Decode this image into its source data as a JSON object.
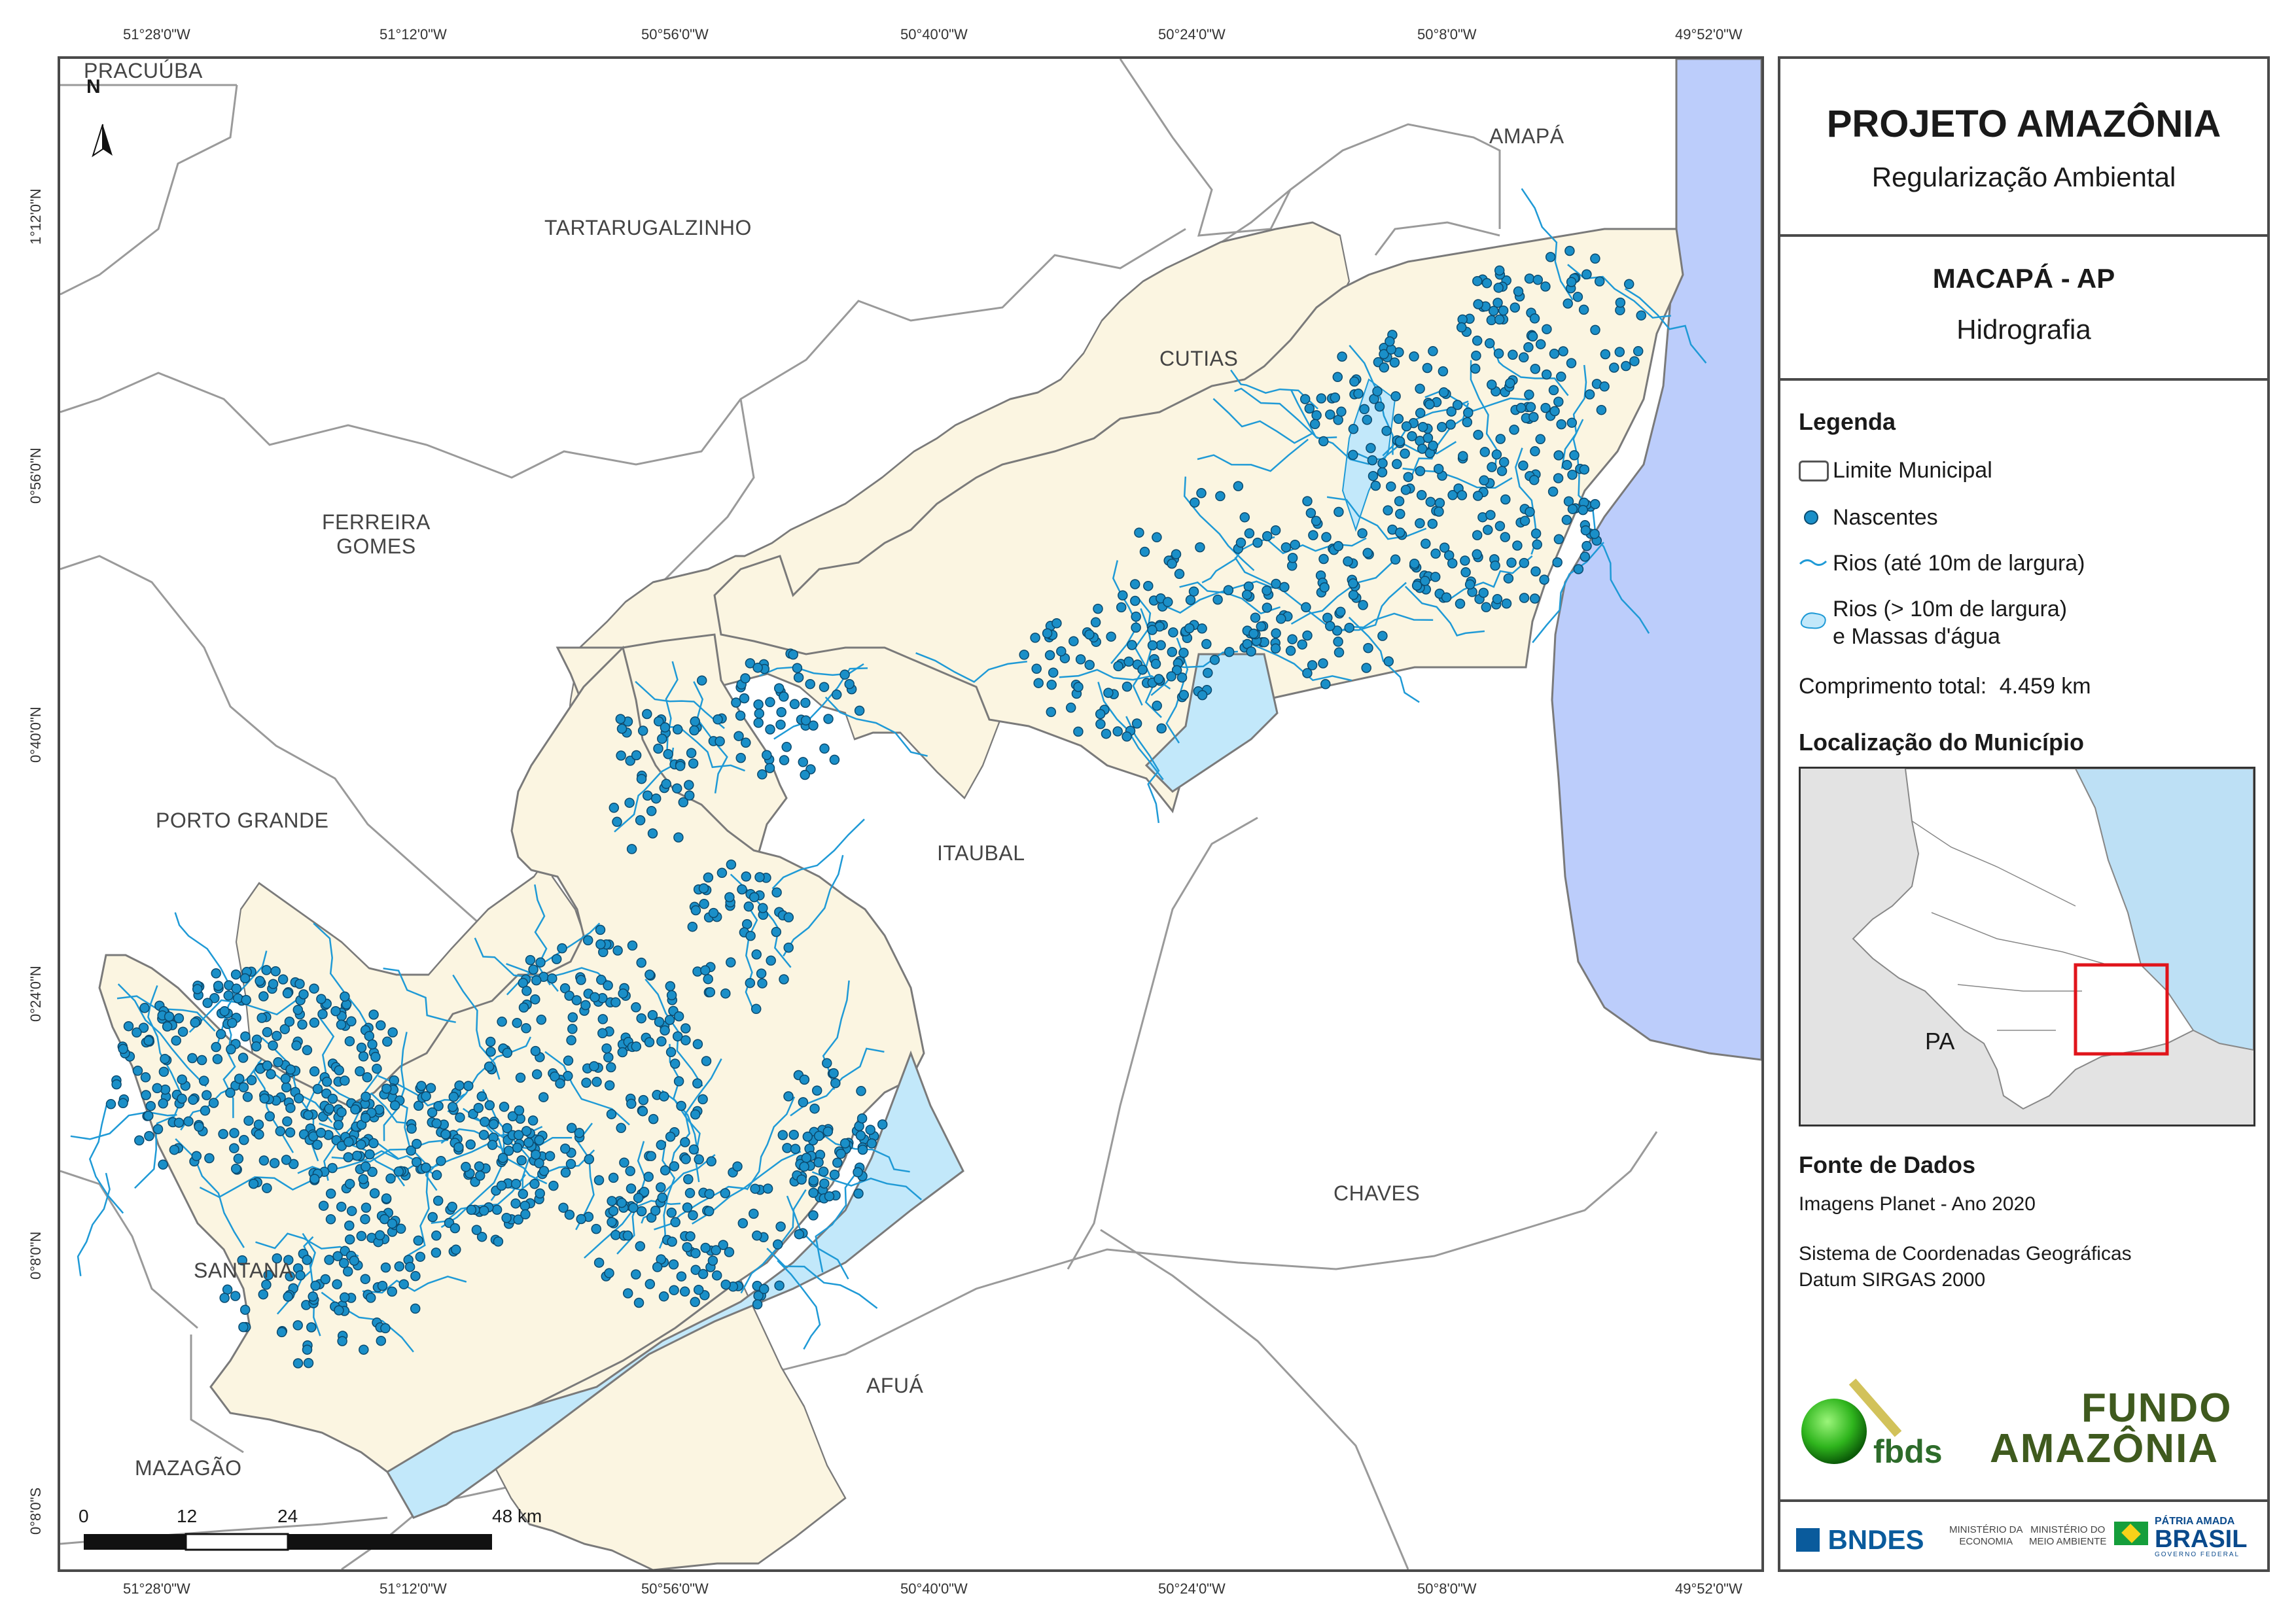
{
  "title": {
    "main": "PROJETO AMAZÔNIA",
    "sub": "Regularização Ambiental"
  },
  "municipality": {
    "name": "MACAPÁ - AP",
    "theme": "Hidrografia"
  },
  "legend": {
    "heading": "Legenda",
    "items": [
      {
        "label": "Limite Municipal",
        "symbol": "polygon-outline"
      },
      {
        "label": "Nascentes",
        "symbol": "blue-dot"
      },
      {
        "label": "Rios (até 10m de largura)",
        "symbol": "blue-line"
      },
      {
        "label": "Rios (> 10m de largura)",
        "label2": "e Massas d'água",
        "symbol": "light-blue-polygon"
      }
    ],
    "total_label": "Comprimento total:",
    "total_value": "4.459 km"
  },
  "location": {
    "heading": "Localização do Município",
    "state_label": "PA"
  },
  "sources": {
    "heading": "Fonte de Dados",
    "line1": "Imagens Planet - Ano 2020",
    "line2": "Sistema de Coordenadas Geográficas",
    "line3": "Datum SIRGAS 2000"
  },
  "logos": {
    "fbds": "fbds",
    "fundo1": "FUNDO",
    "fundo2": "AMAZÔNIA",
    "bndes": "BNDES",
    "min1a": "MINISTÉRIO DA",
    "min1b": "ECONOMIA",
    "min2a": "MINISTÉRIO DO",
    "min2b": "MEIO AMBIENTE",
    "patria1": "PÁTRIA AMADA",
    "patria2": "BRASIL",
    "patria3": "GOVERNO FEDERAL"
  },
  "map": {
    "north": "N",
    "x_ticks": [
      "51°28'0\"W",
      "51°12'0\"W",
      "50°56'0\"W",
      "50°40'0\"W",
      "50°24'0\"W",
      "50°8'0\"W",
      "49°52'0\"W"
    ],
    "y_ticks": [
      "1°12'0\"N",
      "0°56'0\"N",
      "0°40'0\"N",
      "0°24'0\"N",
      "0°8'0\"N",
      "0°8'0\"S"
    ],
    "scale": {
      "labels": [
        "0",
        "12",
        "24",
        "48 km"
      ]
    },
    "municipalities": [
      {
        "name": "PRACUÚBA"
      },
      {
        "name": "AMAPÁ"
      },
      {
        "name": "TARTARUGALZINHO"
      },
      {
        "name": "CUTIAS"
      },
      {
        "name": "FERREIRA",
        "name2": "GOMES"
      },
      {
        "name": "PORTO GRANDE"
      },
      {
        "name": "ITAUBAL"
      },
      {
        "name": "SANTANA"
      },
      {
        "name": "CHAVES"
      },
      {
        "name": "AFUÁ"
      },
      {
        "name": "MAZAGÃO"
      }
    ],
    "colors": {
      "municipio": "#fbf5e1",
      "water": "#c2e8fa",
      "ocean": "#bccdfb",
      "river": "#1f9ad6",
      "spring": "#1a8fc8",
      "border": "#8c8c8c"
    }
  }
}
